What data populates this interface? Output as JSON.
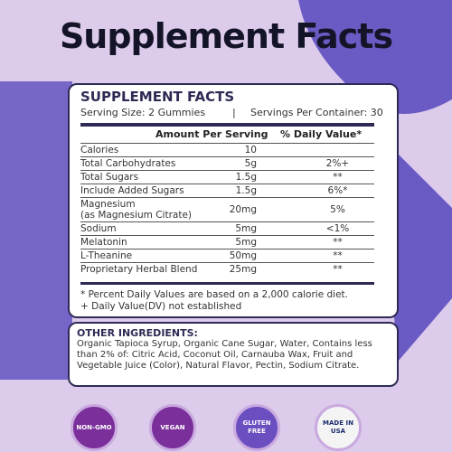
{
  "header": {
    "title": "Supplement Facts"
  },
  "facts": {
    "title": "SUPPLEMENT FACTS",
    "serving_size": "Serving Size: 2 Gummies",
    "separator": "|",
    "servings": "Servings Per Container: 30",
    "col_amount": "Amount Per Serving",
    "col_dv": "% Daily Value*",
    "rows": [
      {
        "name": "Calories",
        "amount": "10",
        "dv": ""
      },
      {
        "name": "Total Carbohydrates",
        "amount": "5g",
        "dv": "2%+"
      },
      {
        "name": "Total Sugars",
        "amount": "1.5g",
        "dv": "**"
      },
      {
        "name": "Include Added Sugars",
        "amount": "1.5g",
        "dv": "6%*"
      },
      {
        "name": "Magnesium",
        "note": "(as Magnesium Citrate)",
        "amount": "20mg",
        "dv": "5%"
      },
      {
        "name": "Sodium",
        "amount": "5mg",
        "dv": "<1%"
      },
      {
        "name": "Melatonin",
        "amount": "5mg",
        "dv": "**"
      },
      {
        "name": "L-Theanine",
        "amount": "50mg",
        "dv": "**"
      },
      {
        "name": "Proprietary Herbal Blend",
        "amount": "25mg",
        "dv": "**"
      }
    ],
    "footnotes": [
      "* Percent Daily Values are based on a 2,000 calorie diet.",
      "+ Daily Value(DV) not established"
    ]
  },
  "ingredients": {
    "title": "OTHER INGREDIENTS:",
    "text": "Organic Tapioca Syrup, Organic Cane Sugar, Water, Contains less than 2% of: Citric Acid, Coconut Oil, Carnauba Wax, Fruit and Vegetable Juice (Color), Natural Flavor, Pectin, Sodium Citrate."
  },
  "badges": [
    "NON-GMO",
    "VEGAN",
    "GLUTEN FREE",
    "MADE IN USA"
  ]
}
